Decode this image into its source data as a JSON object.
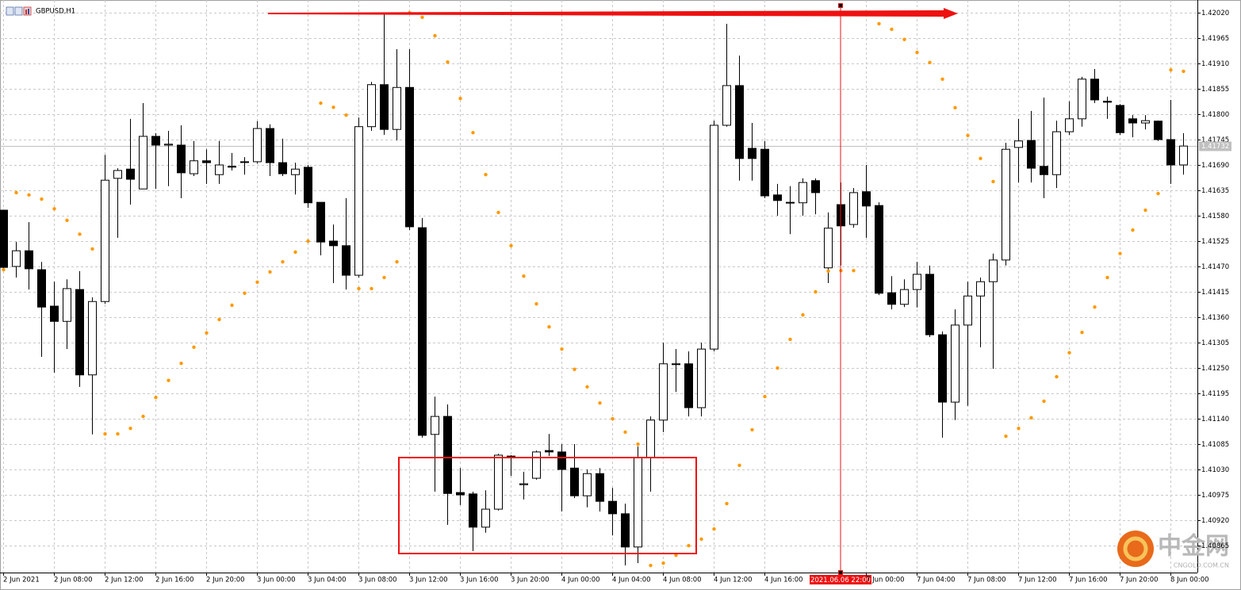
{
  "chart_data": {
    "type": "candlestick",
    "title": "GBPUSD,H1",
    "categories": [
      "2 Jun 2021",
      null,
      null,
      null,
      "2 Jun 08:00",
      null,
      null,
      null,
      "2 Jun 12:00",
      null,
      null,
      null,
      "2 Jun 16:00",
      null,
      null,
      null,
      "2 Jun 20:00",
      null,
      null,
      null,
      "3 Jun 00:00",
      null,
      null,
      null,
      "3 Jun 04:00",
      null,
      null,
      null,
      "3 Jun 08:00",
      null,
      null,
      null,
      "3 Jun 12:00",
      null,
      null,
      null,
      "3 Jun 16:00",
      null,
      null,
      null,
      "3 Jun 20:00",
      null,
      null,
      null,
      "4 Jun 00:00",
      null,
      null,
      null,
      "4 Jun 04:00",
      null,
      null,
      null,
      "4 Jun 08:00",
      null,
      null,
      null,
      "4 Jun 12:00",
      null,
      null,
      null,
      "4 Jun 16:00",
      null,
      null,
      null,
      null,
      null,
      null,
      null,
      "7 Jun 00:00",
      null,
      null,
      null,
      "7 Jun 04:00",
      null,
      null,
      null,
      "7 Jun 08:00",
      null,
      null,
      null,
      "7 Jun 12:00",
      null,
      null,
      null,
      "7 Jun 16:00",
      null,
      null,
      null,
      "7 Jun 20:00",
      null,
      null,
      null,
      "8 Jun 00:00",
      null
    ],
    "open": [
      1.41592,
      1.4147,
      1.41504,
      1.41463,
      1.41384,
      1.41351,
      1.4142,
      1.41235,
      1.41394,
      1.41661,
      1.41681,
      1.41638,
      1.41752,
      1.41733,
      1.41733,
      1.41671,
      1.41699,
      1.41669,
      1.41687,
      1.41697,
      1.41697,
      1.41769,
      1.41695,
      1.41669,
      1.41685,
      1.41609,
      1.41525,
      1.41515,
      1.41451,
      1.41773,
      1.41864,
      1.41767,
      1.41858,
      1.41554,
      1.41106,
      1.41145,
      1.4098,
      1.40977,
      1.40905,
      1.40944,
      1.41059,
      1.40997,
      1.41011,
      1.41071,
      1.41068,
      1.41033,
      1.40973,
      1.41021,
      1.40961,
      1.40934,
      1.40862,
      1.41056,
      1.41137,
      1.41259,
      1.41259,
      1.41164,
      1.41291,
      1.41776,
      1.41862,
      1.41726,
      1.41724,
      1.41625,
      1.41609,
      1.41608,
      1.41656,
      1.41467,
      1.41604,
      1.41561,
      1.41632,
      1.41602,
      1.41413,
      1.41388,
      1.4142,
      1.41453,
      1.41322,
      1.41176,
      1.41343,
      1.41406,
      1.41437,
      1.41484,
      1.41728,
      1.41743,
      1.41687,
      1.41669,
      1.41762,
      1.4179,
      1.41876,
      1.41828,
      1.41819,
      1.4179,
      1.41781,
      1.41785,
      1.41745,
      1.4169
    ],
    "high": [
      1.41592,
      1.41523,
      1.41566,
      1.4148,
      1.41437,
      1.41442,
      1.4146,
      1.41403,
      1.41712,
      1.41683,
      1.4179,
      1.41824,
      1.41759,
      1.41764,
      1.41776,
      1.41742,
      1.41724,
      1.41742,
      1.41716,
      1.41707,
      1.41785,
      1.41778,
      1.41747,
      1.41695,
      1.4169,
      1.41609,
      1.41561,
      1.41618,
      1.41793,
      1.4187,
      1.42017,
      1.41941,
      1.41941,
      1.41575,
      1.41188,
      1.41171,
      1.41033,
      1.40982,
      1.40985,
      1.41064,
      1.41061,
      1.41025,
      1.41071,
      1.41107,
      1.41085,
      1.41085,
      1.4103,
      1.41033,
      1.4099,
      1.40956,
      1.4108,
      1.41145,
      1.41305,
      1.41291,
      1.41286,
      1.41305,
      1.41786,
      1.41996,
      1.41927,
      1.41781,
      1.41742,
      1.41649,
      1.41644,
      1.41661,
      1.41661,
      1.41587,
      1.41652,
      1.4164,
      1.4169,
      1.41609,
      1.41449,
      1.41442,
      1.4148,
      1.41472,
      1.41329,
      1.41377,
      1.41437,
      1.41446,
      1.41498,
      1.41738,
      1.4179,
      1.41807,
      1.41836,
      1.41786,
      1.41828,
      1.41881,
      1.41898,
      1.41838,
      1.41822,
      1.41798,
      1.41798,
      1.41786,
      1.41831,
      1.41759
    ],
    "low": [
      1.4146,
      1.41446,
      1.4142,
      1.41274,
      1.4124,
      1.41291,
      1.41209,
      1.41106,
      1.41389,
      1.41532,
      1.41604,
      1.41638,
      1.41638,
      1.41644,
      1.41618,
      1.41666,
      1.41649,
      1.41649,
      1.41678,
      1.41669,
      1.41693,
      1.41666,
      1.41666,
      1.41626,
      1.41597,
      1.41494,
      1.41434,
      1.4142,
      1.41446,
      1.41764,
      1.41755,
      1.41743,
      1.41549,
      1.41099,
      1.40982,
      1.4091,
      1.40953,
      1.40853,
      1.40893,
      1.40941,
      1.41016,
      1.40965,
      1.41008,
      1.41059,
      1.40939,
      1.40968,
      1.40948,
      1.40939,
      1.40887,
      1.40822,
      1.40827,
      1.40982,
      1.41111,
      1.41198,
      1.41145,
      1.41145,
      1.41286,
      1.41773,
      1.41656,
      1.41656,
      1.41618,
      1.4158,
      1.4154,
      1.4158,
      1.41583,
      1.41434,
      1.41472,
      1.41554,
      1.41532,
      1.41408,
      1.41377,
      1.41382,
      1.41381,
      1.41317,
      1.41099,
      1.41137,
      1.41168,
      1.41295,
      1.41248,
      1.41472,
      1.41652,
      1.41652,
      1.41618,
      1.4164,
      1.41755,
      1.41773,
      1.41824,
      1.4179,
      1.41755,
      1.4175,
      1.41767,
      1.41742,
      1.41649,
      1.41669
    ],
    "close": [
      1.41468,
      1.41504,
      1.41465,
      1.41382,
      1.41351,
      1.41422,
      1.41235,
      1.41394,
      1.41657,
      1.41678,
      1.41659,
      1.41752,
      1.41733,
      1.41735,
      1.41673,
      1.41699,
      1.41695,
      1.4169,
      1.41687,
      1.41697,
      1.41769,
      1.41695,
      1.41671,
      1.41681,
      1.41608,
      1.41523,
      1.41515,
      1.41451,
      1.41773,
      1.41864,
      1.41767,
      1.41858,
      1.41556,
      1.41104,
      1.41145,
      1.40978,
      1.40975,
      1.40905,
      1.40944,
      1.41061,
      1.41059,
      1.40999,
      1.41068,
      1.41068,
      1.4103,
      1.40973,
      1.41021,
      1.40961,
      1.40934,
      1.40862,
      1.41056,
      1.41137,
      1.41259,
      1.41259,
      1.41164,
      1.41291,
      1.41776,
      1.41862,
      1.41704,
      1.41704,
      1.41623,
      1.41613,
      1.41609,
      1.41652,
      1.4163,
      1.41553,
      1.41558,
      1.4163,
      1.41601,
      1.41412,
      1.41388,
      1.4142,
      1.41453,
      1.41322,
      1.41176,
      1.41343,
      1.41406,
      1.41437,
      1.41484,
      1.41724,
      1.41742,
      1.41683,
      1.41669,
      1.41762,
      1.4179,
      1.41876,
      1.41831,
      1.41826,
      1.4176,
      1.41781,
      1.41786,
      1.41745,
      1.4169,
      1.41731
    ],
    "up_color": "#ffffff",
    "down_color": "#000000",
    "sar": {
      "color": "#ff9900",
      "values": [
        1.41463,
        1.4163,
        1.41625,
        1.41616,
        1.41595,
        1.4157,
        1.4154,
        1.41508,
        1.41107,
        1.41107,
        1.41119,
        1.41145,
        1.41186,
        1.41223,
        1.4126,
        1.41295,
        1.41326,
        1.41355,
        1.41386,
        1.41412,
        1.41436,
        1.41458,
        1.4148,
        1.41501,
        1.41525,
        1.41824,
        1.41815,
        1.41798,
        1.41422,
        1.41422,
        1.41446,
        1.4148,
        1.4202,
        1.4201,
        1.4197,
        1.41913,
        1.41834,
        1.4176,
        1.41669,
        1.41587,
        1.41515,
        1.41449,
        1.41389,
        1.41339,
        1.41291,
        1.41247,
        1.41209,
        1.41174,
        1.4114,
        1.41111,
        1.41085,
        1.40822,
        1.40827,
        1.40844,
        1.40865,
        1.40879,
        1.40901,
        1.40956,
        1.41039,
        1.41116,
        1.41188,
        1.4125,
        1.41312,
        1.41365,
        1.41415,
        1.4146,
        1.41461,
        1.41461,
        null,
        1.41996,
        1.41984,
        1.41962,
        1.41934,
        1.41912,
        1.41876,
        1.41814,
        1.41754,
        1.41704,
        1.41654,
        1.41102,
        1.41119,
        1.41142,
        1.41178,
        1.41231,
        1.41283,
        1.41327,
        1.41382,
        1.41446,
        1.41498,
        1.41549,
        1.41592,
        1.41628,
        1.41896,
        1.41893
      ]
    },
    "ylim": [
      1.408066,
      1.420475
    ],
    "yticks": [
      {
        "value": 1.4202,
        "label": "1.42020"
      },
      1.41965,
      {
        "value": 1.4191,
        "label": "1.41910"
      },
      1.41855,
      {
        "value": 1.418,
        "label": "1.41800"
      },
      1.41745,
      {
        "value": 1.4169,
        "label": "1.41690"
      },
      1.41635,
      {
        "value": 1.4158,
        "label": "1.41580"
      },
      1.41525,
      {
        "value": 1.4147,
        "label": "1.41470"
      },
      1.41415,
      {
        "value": 1.4136,
        "label": "1.41360"
      },
      1.41305,
      {
        "value": 1.4125,
        "label": "1.41250"
      },
      1.41195,
      {
        "value": 1.4114,
        "label": "1.41140"
      },
      1.41085,
      {
        "value": 1.4103,
        "label": "1.41030"
      },
      1.40975,
      {
        "value": 1.4092,
        "label": "1.40920"
      },
      1.40865
    ],
    "grid": true,
    "current_price": 1.41732,
    "vline_label": "2021.06.06 22:00"
  },
  "watermark": {
    "brand": "中金网",
    "site": "CNGOLD.COM.CN"
  }
}
